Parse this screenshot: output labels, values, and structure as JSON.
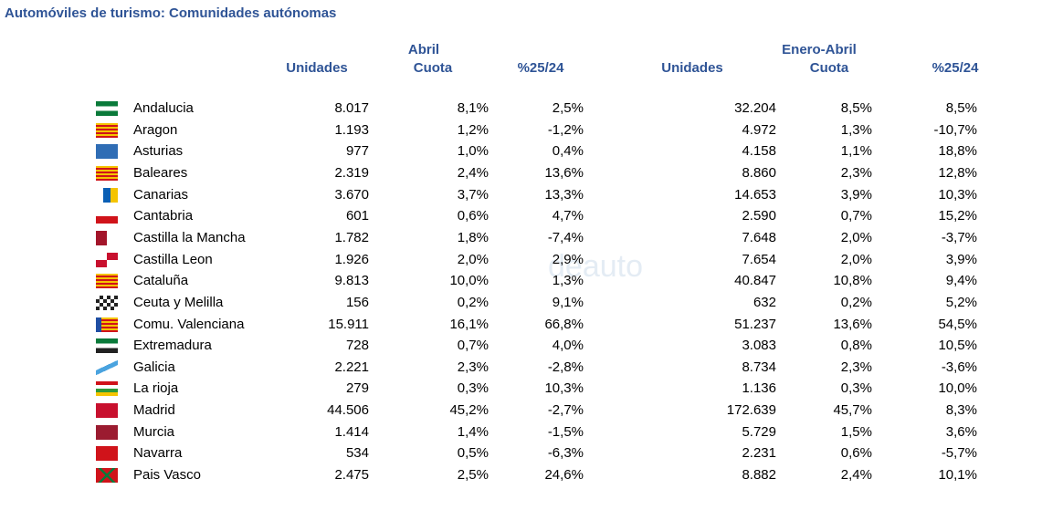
{
  "header": {
    "title": "Automóviles de turismo: Comunidades autónomas",
    "groups": [
      "Abril",
      "Enero-Abril"
    ],
    "columns": [
      "Unidades",
      "Cuota",
      "%25/24",
      "Unidades",
      "Cuota",
      "%25/24"
    ]
  },
  "watermark": "deauto",
  "table": {
    "rows": [
      [
        "Andalucia",
        "8.017",
        "8,1%",
        "2,5%",
        "32.204",
        "8,5%",
        "8,5%"
      ],
      [
        "Aragon",
        "1.193",
        "1,2%",
        "-1,2%",
        "4.972",
        "1,3%",
        "-10,7%"
      ],
      [
        "Asturias",
        "977",
        "1,0%",
        "0,4%",
        "4.158",
        "1,1%",
        "18,8%"
      ],
      [
        "Baleares",
        "2.319",
        "2,4%",
        "13,6%",
        "8.860",
        "2,3%",
        "12,8%"
      ],
      [
        "Canarias",
        "3.670",
        "3,7%",
        "13,3%",
        "14.653",
        "3,9%",
        "10,3%"
      ],
      [
        "Cantabria",
        "601",
        "0,6%",
        "4,7%",
        "2.590",
        "0,7%",
        "15,2%"
      ],
      [
        "Castilla la Mancha",
        "1.782",
        "1,8%",
        "-7,4%",
        "7.648",
        "2,0%",
        "-3,7%"
      ],
      [
        "Castilla Leon",
        "1.926",
        "2,0%",
        "2,9%",
        "7.654",
        "2,0%",
        "3,9%"
      ],
      [
        "Cataluña",
        "9.813",
        "10,0%",
        "1,3%",
        "40.847",
        "10,8%",
        "9,4%"
      ],
      [
        "Ceuta y Melilla",
        "156",
        "0,2%",
        "9,1%",
        "632",
        "0,2%",
        "5,2%"
      ],
      [
        "Comu. Valenciana",
        "15.911",
        "16,1%",
        "66,8%",
        "51.237",
        "13,6%",
        "54,5%"
      ],
      [
        "Extremadura",
        "728",
        "0,7%",
        "4,0%",
        "3.083",
        "0,8%",
        "10,5%"
      ],
      [
        "Galicia",
        "2.221",
        "2,3%",
        "-2,8%",
        "8.734",
        "2,3%",
        "-3,6%"
      ],
      [
        "La rioja",
        "279",
        "0,3%",
        "10,3%",
        "1.136",
        "0,3%",
        "10,0%"
      ],
      [
        "Madrid",
        "44.506",
        "45,2%",
        "-2,7%",
        "172.639",
        "45,7%",
        "8,3%"
      ],
      [
        "Murcia",
        "1.414",
        "1,4%",
        "-1,5%",
        "5.729",
        "1,5%",
        "3,6%"
      ],
      [
        "Navarra",
        "534",
        "0,5%",
        "-6,3%",
        "2.231",
        "0,6%",
        "-5,7%"
      ],
      [
        "Pais Vasco",
        "2.475",
        "2,5%",
        "24,6%",
        "8.882",
        "2,4%",
        "10,1%"
      ]
    ]
  }
}
